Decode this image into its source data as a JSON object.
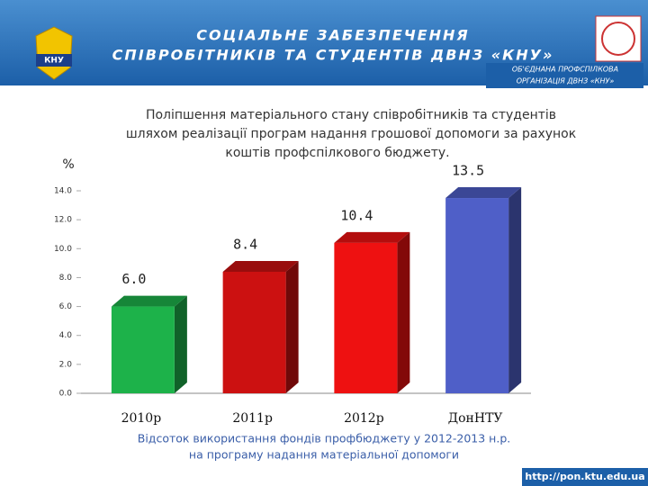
{
  "header": {
    "title_lines": [
      "СОЦІАЛЬНЕ ЗАБЕЗПЕЧЕННЯ",
      "СПІВРОБІТНИКІВ ТА СТУДЕНТІВ ДВНЗ «КНУ»"
    ],
    "logo_text": "КНУ",
    "org_lines": [
      "ОБ'ЄДНАНА ПРОФСПІЛКОВА",
      "ОРГАНІЗАЦІЯ ДВНЗ «КНУ»"
    ]
  },
  "chart_data": {
    "type": "bar3d",
    "title_lines": [
      "Поліпшення матеріального стану співробітників та студентів",
      "шляхом реалізації програм надання грошової допомоги за рахунок",
      "коштів профспілкового бюджету."
    ],
    "y_label": "%",
    "categories": [
      "2010р",
      "2011р",
      "2012р",
      "ДонНТУ"
    ],
    "values": [
      6.0,
      8.4,
      10.4,
      13.5
    ],
    "value_labels": [
      "6.0",
      "8.4",
      "10.4",
      "13.5"
    ],
    "colors": [
      "#1db24a",
      "#cc1111",
      "#ee1111",
      "#4f5fc8"
    ],
    "ylim": [
      0,
      14
    ],
    "yticks": [
      {
        "value": 0,
        "label": "0.0"
      },
      {
        "value": 2,
        "label": "2.0"
      },
      {
        "value": 4,
        "label": "4.0"
      },
      {
        "value": 6,
        "label": "6.0"
      },
      {
        "value": 8,
        "label": "8.0"
      },
      {
        "value": 10,
        "label": "10.0"
      },
      {
        "value": 12,
        "label": "12.0"
      },
      {
        "value": 14,
        "label": "14.0"
      }
    ],
    "caption_lines": [
      "Відсоток використання фондів профбюджету у 2012-2013 н.р.",
      "на програму надання матеріальної допомоги"
    ]
  },
  "footer": {
    "url": "http://pon.ktu.edu.ua"
  }
}
